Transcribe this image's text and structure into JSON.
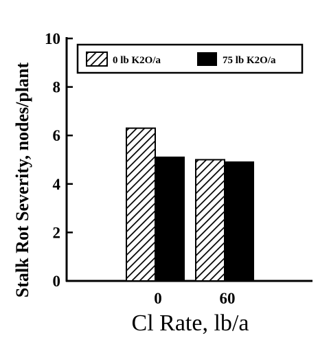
{
  "chart_data": {
    "type": "bar",
    "categories": [
      "0",
      "60"
    ],
    "series": [
      {
        "name": "0 lb K2O/a",
        "values": [
          6.3,
          5.0
        ],
        "fill": "hatched"
      },
      {
        "name": "75 lb K2O/a",
        "values": [
          5.1,
          4.9
        ],
        "fill": "solid"
      }
    ],
    "xlabel": "Cl Rate, lb/a",
    "ylabel": "Stalk Rot Severity, nodes/plant",
    "ylim": [
      0,
      10
    ],
    "yticks": [
      0,
      2,
      4,
      6,
      8,
      10
    ],
    "legend_position": "top",
    "grid": false,
    "colors": {
      "bar": "#000000",
      "background": "#ffffff"
    }
  }
}
